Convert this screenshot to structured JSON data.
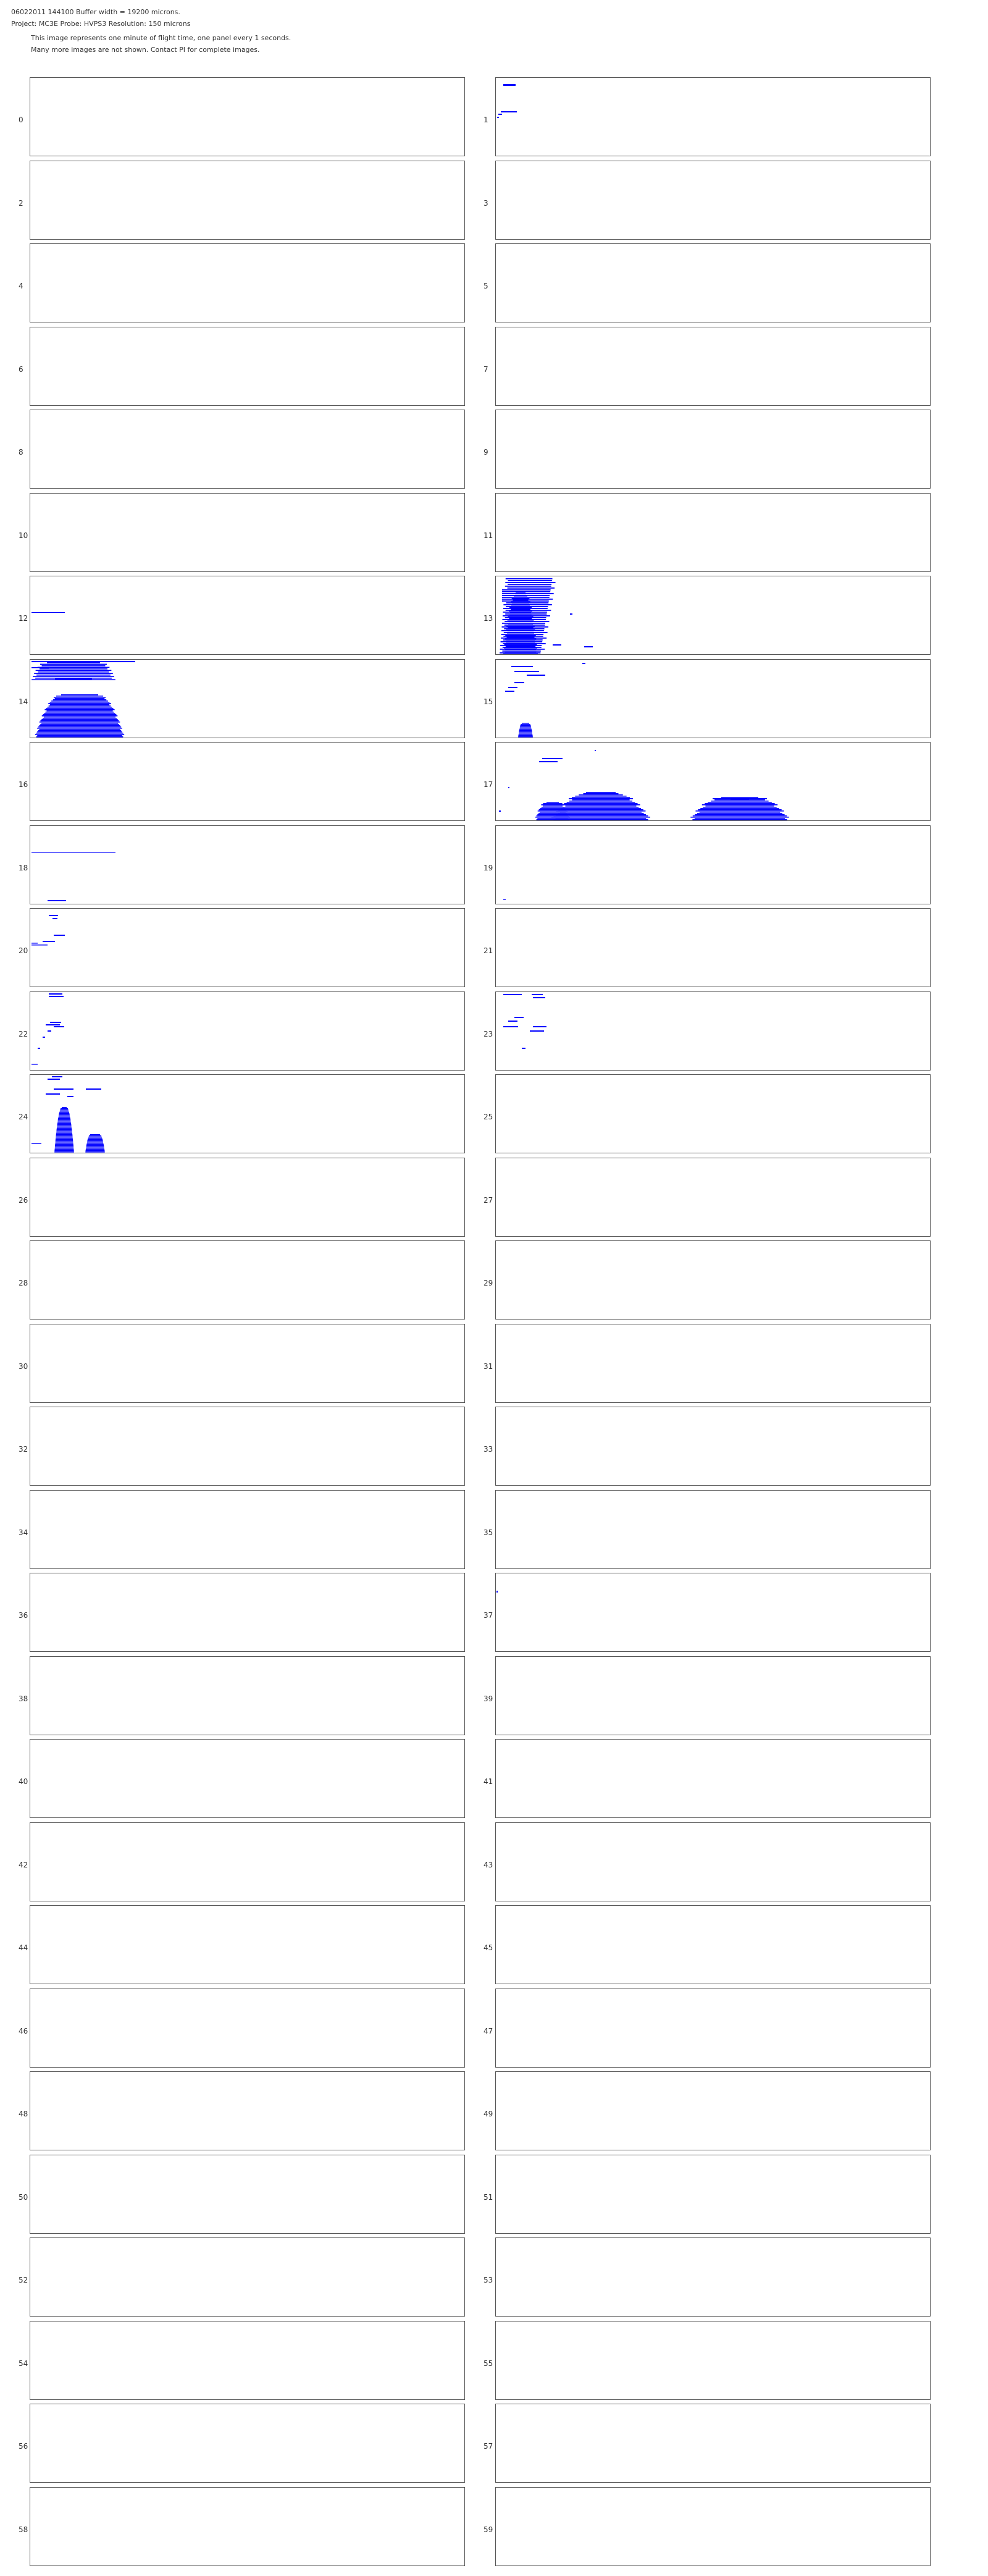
{
  "header": {
    "line1": "06022011 144100  Buffer width = 19200 microns.",
    "line2": "Project: MC3E  Probe: HVPS3   Resolution: 150 microns",
    "line3": "This image represents one minute of flight time, one panel every 1 seconds.",
    "line4": "Many more images are not shown.  Contact PI for complete images."
  },
  "panel_labels": [
    "0",
    "1",
    "2",
    "3",
    "4",
    "5",
    "6",
    "7",
    "8",
    "9",
    "10",
    "11",
    "12",
    "13",
    "14",
    "15",
    "16",
    "17",
    "18",
    "19",
    "20",
    "21",
    "22",
    "23",
    "24",
    "25",
    "26",
    "27",
    "28",
    "29",
    "30",
    "31",
    "32",
    "33",
    "34",
    "35",
    "36",
    "37",
    "38",
    "39",
    "40",
    "41",
    "42",
    "43",
    "44",
    "45",
    "46",
    "47",
    "48",
    "49",
    "50",
    "51",
    "52",
    "53",
    "54",
    "55",
    "56",
    "57",
    "58",
    "59"
  ],
  "colors": {
    "particle": "#0000ff",
    "panel_border": "#555555",
    "text": "#333333"
  }
}
